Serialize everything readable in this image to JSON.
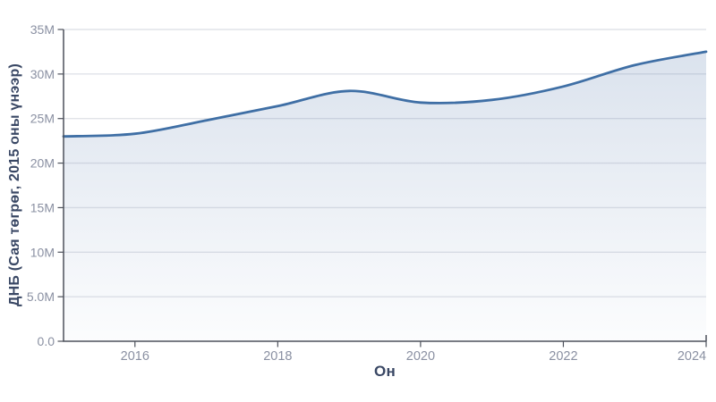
{
  "chart_data": {
    "type": "area",
    "title": "",
    "xlabel": "Он",
    "ylabel": "ДНБ (Сая төгрөг, 2015 оны үнээр)",
    "x": [
      2015,
      2016,
      2017,
      2018,
      2019,
      2020,
      2021,
      2022,
      2023,
      2024
    ],
    "series": [
      {
        "name": "ДНБ",
        "values_display_M": [
          23.0,
          23.3,
          24.8,
          26.4,
          28.1,
          26.8,
          27.1,
          28.6,
          31.0,
          32.5
        ]
      }
    ],
    "xlim": [
      2015,
      2024
    ],
    "ylim_display_M": [
      0,
      35
    ],
    "xticks": [
      {
        "value": 2016,
        "label": "2016"
      },
      {
        "value": 2018,
        "label": "2018"
      },
      {
        "value": 2020,
        "label": "2020"
      },
      {
        "value": 2022,
        "label": "2022"
      },
      {
        "value": 2024,
        "label": "2024"
      }
    ],
    "yticks": [
      {
        "value": 0,
        "label": "0.0"
      },
      {
        "value": 5,
        "label": "5.0M"
      },
      {
        "value": 10,
        "label": "10M"
      },
      {
        "value": 15,
        "label": "15M"
      },
      {
        "value": 20,
        "label": "20M"
      },
      {
        "value": 25,
        "label": "25M"
      },
      {
        "value": 30,
        "label": "30M"
      },
      {
        "value": 35,
        "label": "35M"
      }
    ],
    "grid": true,
    "legend_position": "none",
    "smoothing": "spline",
    "colors": {
      "line": "#3f6fa5",
      "fill_top": "rgba(90,125,175,0.22)",
      "fill_bottom": "rgba(90,125,175,0.02)",
      "grid": "#e1e3e8",
      "spine": "#4d515b",
      "tick_label": "#8a90a2",
      "axis_title": "#394764",
      "background": "#ffffff"
    }
  }
}
